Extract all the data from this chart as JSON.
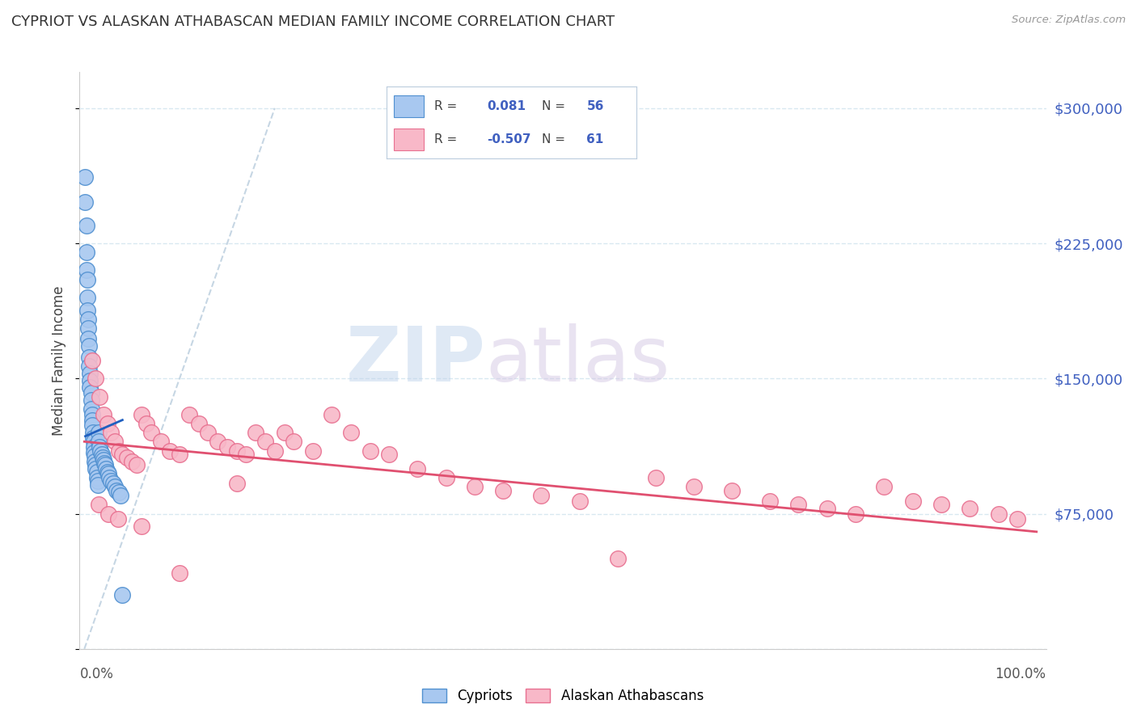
{
  "title": "CYPRIOT VS ALASKAN ATHABASCAN MEDIAN FAMILY INCOME CORRELATION CHART",
  "source": "Source: ZipAtlas.com",
  "ylabel": "Median Family Income",
  "yticks": [
    0,
    75000,
    150000,
    225000,
    300000
  ],
  "ytick_labels": [
    "",
    "$75,000",
    "$150,000",
    "$225,000",
    "$300,000"
  ],
  "ymax": 320000,
  "ymin": 0,
  "xmin": -0.005,
  "xmax": 1.01,
  "cypriot_color": "#a8c8f0",
  "cypriot_edge": "#5090d0",
  "athabascan_color": "#f8b8c8",
  "athabascan_edge": "#e87090",
  "trend_cypriot_color": "#2060c0",
  "trend_athabascan_color": "#e05070",
  "diag_color": "#b8ccdd",
  "grid_color": "#d8e8f0",
  "spine_color": "#cccccc",
  "right_label_color": "#4060c0",
  "cypriot_x": [
    0.001,
    0.001,
    0.002,
    0.002,
    0.002,
    0.003,
    0.003,
    0.003,
    0.004,
    0.004,
    0.004,
    0.005,
    0.005,
    0.005,
    0.006,
    0.006,
    0.006,
    0.007,
    0.007,
    0.007,
    0.008,
    0.008,
    0.008,
    0.009,
    0.009,
    0.01,
    0.01,
    0.01,
    0.011,
    0.011,
    0.012,
    0.012,
    0.013,
    0.013,
    0.014,
    0.014,
    0.015,
    0.015,
    0.016,
    0.017,
    0.018,
    0.019,
    0.02,
    0.021,
    0.022,
    0.023,
    0.024,
    0.025,
    0.026,
    0.028,
    0.03,
    0.032,
    0.034,
    0.036,
    0.038,
    0.04
  ],
  "cypriot_y": [
    262000,
    248000,
    235000,
    220000,
    210000,
    205000,
    195000,
    188000,
    183000,
    178000,
    172000,
    168000,
    162000,
    157000,
    153000,
    149000,
    145000,
    142000,
    138000,
    133000,
    130000,
    127000,
    124000,
    120000,
    117000,
    115000,
    112000,
    109000,
    107000,
    104000,
    102000,
    100000,
    98000,
    95000,
    93000,
    91000,
    120000,
    115000,
    112000,
    110000,
    108000,
    106000,
    105000,
    103000,
    102000,
    100000,
    98000,
    97000,
    95000,
    93000,
    92000,
    90000,
    88000,
    87000,
    85000,
    30000
  ],
  "athabascan_x": [
    0.008,
    0.012,
    0.016,
    0.02,
    0.024,
    0.028,
    0.032,
    0.036,
    0.04,
    0.045,
    0.05,
    0.055,
    0.06,
    0.065,
    0.07,
    0.08,
    0.09,
    0.1,
    0.11,
    0.12,
    0.13,
    0.14,
    0.15,
    0.16,
    0.17,
    0.18,
    0.19,
    0.2,
    0.21,
    0.22,
    0.24,
    0.26,
    0.28,
    0.3,
    0.32,
    0.35,
    0.38,
    0.41,
    0.44,
    0.48,
    0.52,
    0.56,
    0.6,
    0.64,
    0.68,
    0.72,
    0.75,
    0.78,
    0.81,
    0.84,
    0.87,
    0.9,
    0.93,
    0.96,
    0.98,
    0.015,
    0.025,
    0.035,
    0.06,
    0.1,
    0.16
  ],
  "athabascan_y": [
    160000,
    150000,
    140000,
    130000,
    125000,
    120000,
    115000,
    110000,
    108000,
    106000,
    104000,
    102000,
    130000,
    125000,
    120000,
    115000,
    110000,
    108000,
    130000,
    125000,
    120000,
    115000,
    112000,
    110000,
    108000,
    120000,
    115000,
    110000,
    120000,
    115000,
    110000,
    130000,
    120000,
    110000,
    108000,
    100000,
    95000,
    90000,
    88000,
    85000,
    82000,
    50000,
    95000,
    90000,
    88000,
    82000,
    80000,
    78000,
    75000,
    90000,
    82000,
    80000,
    78000,
    75000,
    72000,
    80000,
    75000,
    72000,
    68000,
    42000,
    92000
  ],
  "trend_athabascan_x0": 0.0,
  "trend_athabascan_x1": 1.0,
  "trend_athabascan_y0": 115000,
  "trend_athabascan_y1": 65000,
  "trend_cypriot_x0": 0.001,
  "trend_cypriot_x1": 0.04,
  "trend_cypriot_y0": 118000,
  "trend_cypriot_y1": 127000
}
